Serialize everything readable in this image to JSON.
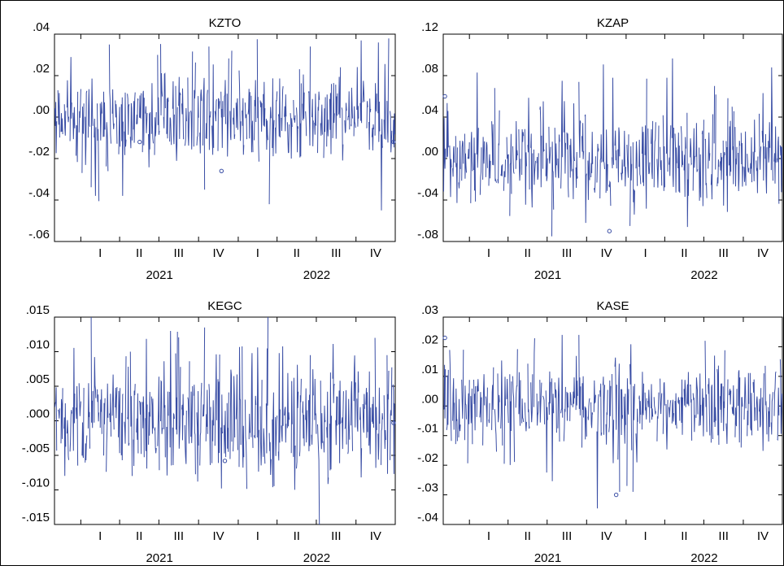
{
  "figure": {
    "line_color": "#3a4ea5",
    "axis_color": "#000000",
    "background": "#ffffff"
  },
  "chart_data": [
    {
      "type": "line",
      "title": "KZTO",
      "xlabel": "",
      "ylabel": "",
      "ylim": [
        -0.06,
        0.04
      ],
      "y_ticks": [
        ".04",
        ".02",
        ".00",
        "-.02",
        "-.04",
        "-.06"
      ],
      "quarter_ticks": [
        "I",
        "II",
        "III",
        "IV",
        "I",
        "II",
        "III",
        "IV"
      ],
      "year_labels": [
        "2021",
        "2022"
      ],
      "x_range": [
        "2020-11-01",
        "2022-12-31"
      ],
      "frequency": "daily",
      "series": [
        {
          "approx_std": 0.011,
          "start_value": 0.013,
          "seed": 11,
          "spikes": [
            [
              0.12,
              -0.038
            ],
            [
              0.16,
              0.035
            ],
            [
              0.2,
              -0.038
            ],
            [
              0.3,
              0.03
            ],
            [
              0.44,
              -0.035
            ],
            [
              0.45,
              0.034
            ],
            [
              0.52,
              0.032
            ],
            [
              0.63,
              -0.042
            ],
            [
              0.75,
              0.034
            ],
            [
              0.9,
              0.037
            ],
            [
              0.95,
              0.036
            ],
            [
              0.96,
              -0.045
            ]
          ],
          "isolated_points": [
            [
              0.25,
              -0.012
            ],
            [
              0.49,
              -0.026
            ],
            [
              0.995,
              -0.012
            ]
          ]
        }
      ]
    },
    {
      "type": "line",
      "title": "KZAP",
      "xlabel": "",
      "ylabel": "",
      "ylim": [
        -0.08,
        0.12
      ],
      "y_ticks": [
        ".12",
        ".08",
        ".04",
        ".00",
        "-.04",
        "-.08"
      ],
      "quarter_ticks": [
        "I",
        "II",
        "III",
        "IV",
        "I",
        "II",
        "III",
        "IV"
      ],
      "year_labels": [
        "2021",
        "2022"
      ],
      "x_range": [
        "2020-11-01",
        "2022-12-31"
      ],
      "frequency": "daily",
      "series": [
        {
          "approx_std": 0.022,
          "start_value": 0.0,
          "seed": 23,
          "spikes": [
            [
              0.1,
              0.083
            ],
            [
              0.15,
              0.068
            ],
            [
              0.32,
              -0.075
            ],
            [
              0.35,
              0.075
            ],
            [
              0.4,
              0.074
            ],
            [
              0.42,
              -0.062
            ],
            [
              0.5,
              0.078
            ],
            [
              0.55,
              -0.065
            ],
            [
              0.6,
              0.077
            ],
            [
              0.66,
              0.078
            ],
            [
              0.72,
              -0.066
            ],
            [
              0.8,
              0.07
            ],
            [
              0.85,
              0.05
            ]
          ],
          "isolated_points": [
            [
              0.005,
              0.06
            ],
            [
              0.49,
              -0.07
            ]
          ]
        }
      ]
    },
    {
      "type": "line",
      "title": "KEGC",
      "xlabel": "",
      "ylabel": "",
      "ylim": [
        -0.015,
        0.015
      ],
      "y_ticks": [
        ".015",
        ".010",
        ".005",
        ".000",
        "-.005",
        "-.010",
        "-.015"
      ],
      "quarter_ticks": [
        "I",
        "II",
        "III",
        "IV",
        "I",
        "II",
        "III",
        "IV"
      ],
      "year_labels": [
        "2021",
        "2022"
      ],
      "x_range": [
        "2020-11-01",
        "2022-12-31"
      ],
      "frequency": "daily",
      "series": [
        {
          "approx_std": 0.0045,
          "start_value": 0.0,
          "seed": 37,
          "spikes": [
            [
              0.22,
              0.01
            ],
            [
              0.34,
              0.013
            ],
            [
              0.42,
              -0.0088
            ],
            [
              0.44,
              0.0135
            ],
            [
              0.49,
              -0.0098
            ],
            [
              0.58,
              0.0098
            ],
            [
              0.64,
              -0.0096
            ],
            [
              0.66,
              0.0098
            ],
            [
              0.75,
              0.0095
            ],
            [
              0.94,
              0.012
            ],
            [
              0.975,
              0.0095
            ]
          ],
          "isolated_points": [
            [
              0.5,
              -0.0058
            ],
            [
              0.995,
              -0.0003
            ]
          ]
        }
      ]
    },
    {
      "type": "line",
      "title": "KASE",
      "xlabel": "",
      "ylabel": "",
      "ylim": [
        -0.04,
        0.03
      ],
      "y_ticks": [
        ".03",
        ".02",
        ".01",
        ".00",
        "-.01",
        "-.02",
        "-.03",
        "-.04"
      ],
      "quarter_ticks": [
        "I",
        "II",
        "III",
        "IV",
        "I",
        "II",
        "III",
        "IV"
      ],
      "year_labels": [
        "2021",
        "2022"
      ],
      "x_range": [
        "2020-11-01",
        "2022-12-31"
      ],
      "frequency": "daily",
      "series": [
        {
          "approx_std": 0.0075,
          "start_value": 0.0,
          "seed": 53,
          "spikes": [
            [
              0.06,
              0.019
            ],
            [
              0.35,
              0.024
            ],
            [
              0.4,
              0.024
            ],
            [
              0.52,
              -0.029
            ],
            [
              0.54,
              -0.027
            ],
            [
              0.56,
              -0.029
            ],
            [
              0.77,
              0.022
            ],
            [
              0.8,
              0.017
            ]
          ],
          "isolated_points": [
            [
              0.005,
              0.023
            ],
            [
              0.51,
              -0.03
            ]
          ]
        }
      ]
    }
  ]
}
